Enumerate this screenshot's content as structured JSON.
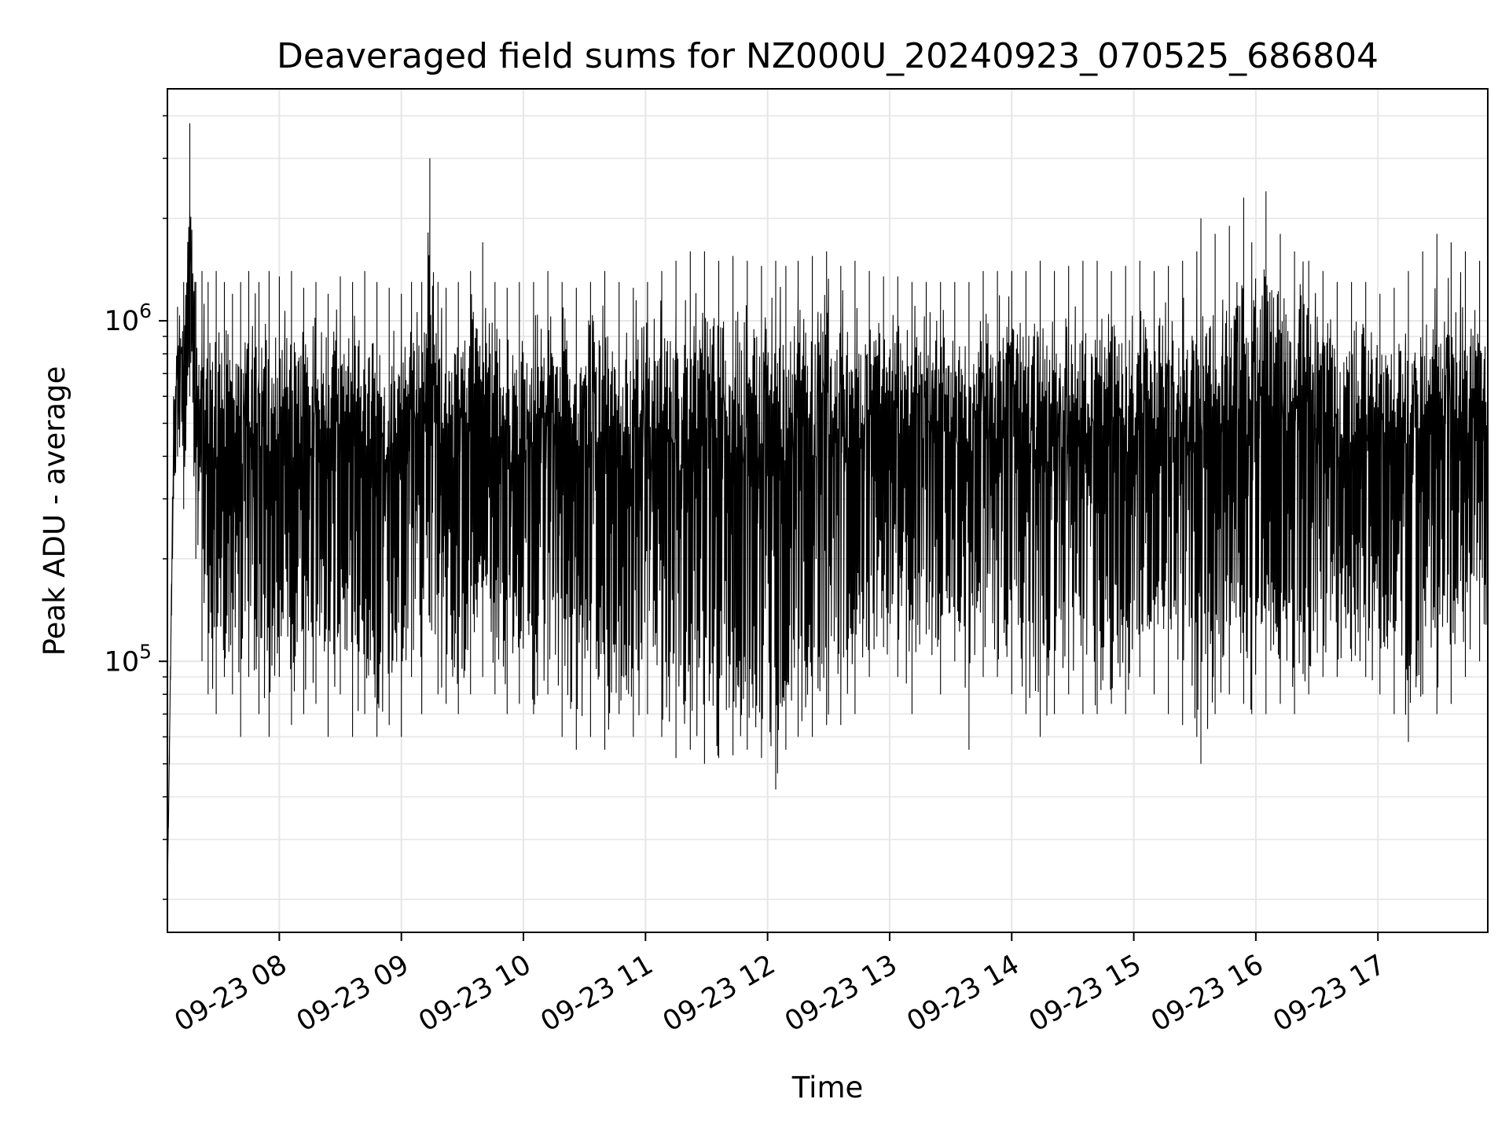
{
  "chart_data": {
    "type": "line",
    "title": "Deaveraged field sums for NZ000U_20240923_070525_686804",
    "xlabel": "Time",
    "ylabel": "Peak ADU - average",
    "yscale": "log",
    "ylim": [
      16000,
      4800000
    ],
    "xlim": [
      "2024-09-23 07:05",
      "2024-09-23 17:54"
    ],
    "grid": true,
    "legend": "none",
    "series_color": "#000000",
    "grid_color": "#e6e6e6",
    "x_ticks": [
      {
        "value": "2024-09-23 08:00",
        "label": "09-23 08"
      },
      {
        "value": "2024-09-23 09:00",
        "label": "09-23 09"
      },
      {
        "value": "2024-09-23 10:00",
        "label": "09-23 10"
      },
      {
        "value": "2024-09-23 11:00",
        "label": "09-23 11"
      },
      {
        "value": "2024-09-23 12:00",
        "label": "09-23 12"
      },
      {
        "value": "2024-09-23 13:00",
        "label": "09-23 13"
      },
      {
        "value": "2024-09-23 14:00",
        "label": "09-23 14"
      },
      {
        "value": "2024-09-23 15:00",
        "label": "09-23 15"
      },
      {
        "value": "2024-09-23 16:00",
        "label": "09-23 16"
      },
      {
        "value": "2024-09-23 17:00",
        "label": "09-23 17"
      }
    ],
    "y_ticks": [
      {
        "value": 100000,
        "base": "10",
        "exp": "5"
      },
      {
        "value": 1000000,
        "base": "10",
        "exp": "6"
      }
    ],
    "series": [
      {
        "x": [
          "2024-09-23 07:05",
          "2024-09-23 07:06",
          "2024-09-23 07:08",
          "2024-09-23 07:10",
          "2024-09-23 07:13",
          "2024-09-23 07:16",
          "2024-09-23 07:19",
          "2024-09-23 07:22",
          "2024-09-23 07:25",
          "2024-09-23 07:29",
          "2024-09-23 07:33",
          "2024-09-23 07:37",
          "2024-09-23 07:41",
          "2024-09-23 07:45",
          "2024-09-23 07:50",
          "2024-09-23 07:55",
          "2024-09-23 08:00",
          "2024-09-23 08:06",
          "2024-09-23 08:12",
          "2024-09-23 08:18",
          "2024-09-23 08:24",
          "2024-09-23 08:30",
          "2024-09-23 08:36",
          "2024-09-23 08:42",
          "2024-09-23 08:48",
          "2024-09-23 08:54",
          "2024-09-23 09:00",
          "2024-09-23 09:05",
          "2024-09-23 09:10",
          "2024-09-23 09:14",
          "2024-09-23 09:18",
          "2024-09-23 09:22",
          "2024-09-23 09:28",
          "2024-09-23 09:34",
          "2024-09-23 09:40",
          "2024-09-23 09:46",
          "2024-09-23 09:52",
          "2024-09-23 09:58",
          "2024-09-23 10:05",
          "2024-09-23 10:12",
          "2024-09-23 10:19",
          "2024-09-23 10:26",
          "2024-09-23 10:33",
          "2024-09-23 10:40",
          "2024-09-23 10:47",
          "2024-09-23 10:54",
          "2024-09-23 11:01",
          "2024-09-23 11:08",
          "2024-09-23 11:15",
          "2024-09-23 11:22",
          "2024-09-23 11:29",
          "2024-09-23 11:36",
          "2024-09-23 11:43",
          "2024-09-23 11:50",
          "2024-09-23 11:57",
          "2024-09-23 12:04",
          "2024-09-23 12:09",
          "2024-09-23 12:15",
          "2024-09-23 12:22",
          "2024-09-23 12:29",
          "2024-09-23 12:36",
          "2024-09-23 12:43",
          "2024-09-23 12:50",
          "2024-09-23 12:57",
          "2024-09-23 13:04",
          "2024-09-23 13:11",
          "2024-09-23 13:18",
          "2024-09-23 13:25",
          "2024-09-23 13:32",
          "2024-09-23 13:39",
          "2024-09-23 13:46",
          "2024-09-23 13:53",
          "2024-09-23 14:00",
          "2024-09-23 14:07",
          "2024-09-23 14:14",
          "2024-09-23 14:21",
          "2024-09-23 14:28",
          "2024-09-23 14:35",
          "2024-09-23 14:42",
          "2024-09-23 14:49",
          "2024-09-23 14:56",
          "2024-09-23 15:03",
          "2024-09-23 15:10",
          "2024-09-23 15:17",
          "2024-09-23 15:24",
          "2024-09-23 15:31",
          "2024-09-23 15:33",
          "2024-09-23 15:40",
          "2024-09-23 15:47",
          "2024-09-23 15:54",
          "2024-09-23 15:58",
          "2024-09-23 16:05",
          "2024-09-23 16:12",
          "2024-09-23 16:19",
          "2024-09-23 16:26",
          "2024-09-23 16:33",
          "2024-09-23 16:40",
          "2024-09-23 16:47",
          "2024-09-23 16:54",
          "2024-09-23 17:01",
          "2024-09-23 17:08",
          "2024-09-23 17:15",
          "2024-09-23 17:22",
          "2024-09-23 17:29",
          "2024-09-23 17:36",
          "2024-09-23 17:43",
          "2024-09-23 17:50",
          "2024-09-23 17:54"
        ],
        "max": [
          22000,
          60000,
          600000,
          1100000,
          1300000,
          3800000,
          1300000,
          1400000,
          1300000,
          1400000,
          1300000,
          1200000,
          1300000,
          1400000,
          1300000,
          1400000,
          1350000,
          1400000,
          1250000,
          1300000,
          1200000,
          1350000,
          1300000,
          1400000,
          1300000,
          1250000,
          1200000,
          1300000,
          1300000,
          3000000,
          1300000,
          1250000,
          1300000,
          1400000,
          1700000,
          1300000,
          1250000,
          1300000,
          1300000,
          1400000,
          1300000,
          1250000,
          1300000,
          1400000,
          1300000,
          1250000,
          1300000,
          1400000,
          1500000,
          1600000,
          1600000,
          1500000,
          1550000,
          1500000,
          1450000,
          1500000,
          1450000,
          1500000,
          1550000,
          1600000,
          1450000,
          1500000,
          1400000,
          1350000,
          1350000,
          1300000,
          1300000,
          1300000,
          1300000,
          1300000,
          1400000,
          1400000,
          1400000,
          1400000,
          1500000,
          1400000,
          1450000,
          1500000,
          1500000,
          1400000,
          1450000,
          1500000,
          1400000,
          1450000,
          1500000,
          1600000,
          2000000,
          1800000,
          1900000,
          2300000,
          1700000,
          2400000,
          1800000,
          1600000,
          1500000,
          1400000,
          1300000,
          1300000,
          1300000,
          1200000,
          1250000,
          1400000,
          1600000,
          1800000,
          1700000,
          1600000,
          1500000,
          1100000
        ],
        "min": [
          20000,
          50000,
          300000,
          400000,
          280000,
          600000,
          200000,
          100000,
          80000,
          70000,
          90000,
          80000,
          60000,
          90000,
          70000,
          60000,
          90000,
          65000,
          70000,
          75000,
          60000,
          80000,
          60000,
          70000,
          60000,
          65000,
          60000,
          90000,
          70000,
          130000,
          80000,
          75000,
          70000,
          80000,
          90000,
          80000,
          70000,
          75000,
          70000,
          80000,
          60000,
          55000,
          60000,
          55000,
          70000,
          60000,
          70000,
          60000,
          52000,
          55000,
          50000,
          52000,
          53000,
          55000,
          52000,
          42000,
          55000,
          60000,
          60000,
          65000,
          65000,
          70000,
          90000,
          110000,
          90000,
          70000,
          120000,
          80000,
          100000,
          55000,
          90000,
          90000,
          80000,
          70000,
          60000,
          70000,
          80000,
          70000,
          70000,
          75000,
          70000,
          90000,
          80000,
          70000,
          65000,
          60000,
          50000,
          70000,
          80000,
          75000,
          70000,
          70000,
          75000,
          70000,
          80000,
          90000,
          90000,
          100000,
          90000,
          80000,
          70000,
          58000,
          80000,
          70000,
          75000,
          90000,
          100000,
          105000
        ]
      }
    ]
  }
}
